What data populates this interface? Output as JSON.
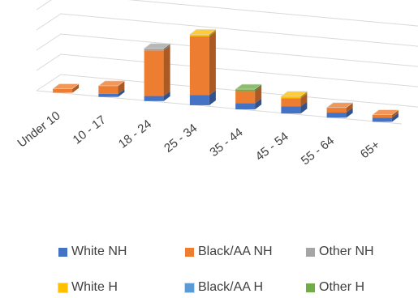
{
  "chart_data": {
    "type": "bar",
    "variant": "3d-stacked-column",
    "categories": [
      "Under 10",
      "10 - 17",
      "18 - 24",
      "25 - 34",
      "35 - 44",
      "45 - 54",
      "55 - 64",
      "65+"
    ],
    "series": [
      {
        "name": "White NH",
        "color": "#4472C4",
        "values": [
          0,
          3,
          5,
          10,
          6,
          7,
          5,
          4
        ]
      },
      {
        "name": "Black/AA NH",
        "color": "#ED7D31",
        "values": [
          4,
          8,
          45,
          58,
          12,
          8,
          5,
          3
        ]
      },
      {
        "name": "Other NH",
        "color": "#A5A5A5",
        "values": [
          0,
          0,
          2,
          0,
          0,
          0,
          0,
          0
        ]
      },
      {
        "name": "White H",
        "color": "#FFC000",
        "values": [
          0,
          0,
          0,
          2,
          0,
          2,
          0,
          0
        ]
      },
      {
        "name": "Black/AA H",
        "color": "#5B9BD5",
        "values": [
          0,
          0,
          0,
          0,
          0,
          0,
          0,
          0
        ]
      },
      {
        "name": "Other H",
        "color": "#70AD47",
        "values": [
          0,
          0,
          0,
          0,
          2,
          0,
          0,
          0
        ]
      }
    ],
    "ylim": [
      0,
      80
    ],
    "grid": true,
    "legend_position": "bottom"
  }
}
